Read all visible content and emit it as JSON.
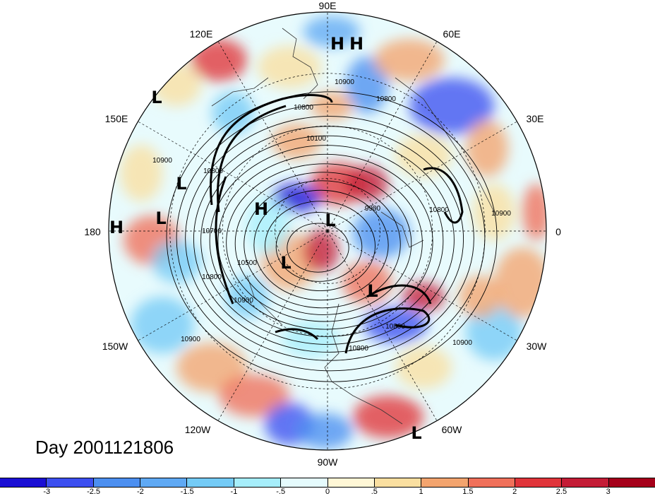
{
  "title": "Day 2001121806",
  "longitude_labels": [
    "90E",
    "60E",
    "30E",
    "0",
    "30W",
    "60W",
    "90W",
    "120W",
    "150W",
    "180",
    "150E",
    "120E"
  ],
  "pressure_systems": [
    "H",
    "L",
    "L",
    "H",
    "L",
    "H",
    "L",
    "L",
    "L",
    "L",
    "H"
  ],
  "contour_labels": [
    "10900",
    "10800",
    "10100",
    "10800",
    "10900",
    "10800",
    "10900",
    "10900",
    "10800",
    "10800",
    "10700",
    "10900",
    "10500",
    "9900",
    "10800",
    "10800",
    "10900"
  ],
  "colorbar": {
    "ticks": [
      "-3",
      "-2.5",
      "-2",
      "-1.5",
      "-1",
      "-.5",
      "0",
      ".5",
      "1",
      "1.5",
      "2",
      "2.5",
      "3"
    ],
    "colors": [
      "#1a0fd4",
      "#3c4ff0",
      "#4c8ff0",
      "#5fa9f4",
      "#74cbf6",
      "#a6eefb",
      "#e5fbfd",
      "#fff7d6",
      "#fadfa0",
      "#f3a46e",
      "#f0705a",
      "#e0343a",
      "#c41c36",
      "#a5001a"
    ]
  },
  "colors": {
    "cold": "#4c8ff0",
    "warm": "#f0705a",
    "neutral": "#ffffff"
  }
}
